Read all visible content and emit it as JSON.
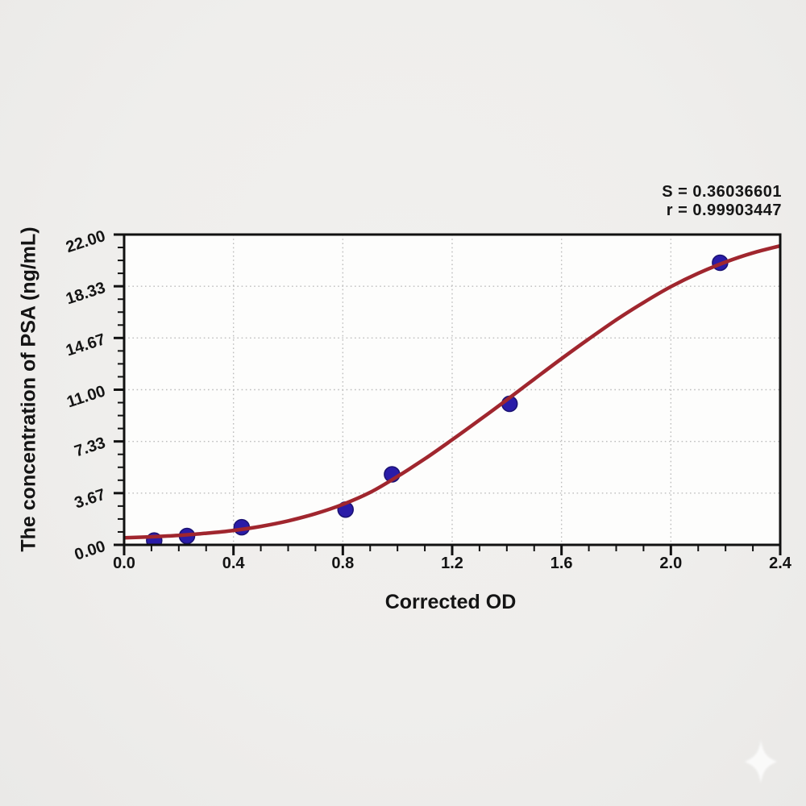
{
  "chart_data": {
    "type": "scatter",
    "title": "",
    "xlabel": "Corrected OD",
    "ylabel": "The concentration of PSA (ng/mL)",
    "xlim": [
      0.0,
      2.4
    ],
    "ylim": [
      0.0,
      22.0
    ],
    "x_major_ticks": [
      0.0,
      0.4,
      0.8,
      1.2,
      1.6,
      2.0,
      2.4
    ],
    "x_tick_labels": [
      "0.0",
      "0.4",
      "0.8",
      "1.2",
      "1.6",
      "2.0",
      "2.4"
    ],
    "x_minor_tick_step": 0.1,
    "y_major_ticks": [
      0.0,
      3.6667,
      7.3333,
      11.0,
      14.6667,
      18.3333,
      22.0
    ],
    "y_tick_labels": [
      "0.00",
      "3.67",
      "7.33",
      "11.00",
      "14.67",
      "18.33",
      "22.00"
    ],
    "y_minor_divisions_per_major": 4,
    "grid": {
      "style": "dotted",
      "on_major": true
    },
    "legend": "none",
    "annotations": {
      "s": "S = 0.36036601",
      "r": "r = 0.99903447"
    },
    "points": {
      "name": "standard-points",
      "x": [
        0.11,
        0.23,
        0.43,
        0.81,
        0.98,
        1.41,
        2.18
      ],
      "y": [
        0.31,
        0.63,
        1.25,
        2.5,
        5.0,
        10.0,
        20.0
      ]
    },
    "fit_curve": {
      "name": "fit-curve",
      "x": [
        0.0,
        0.1,
        0.2,
        0.3,
        0.4,
        0.5,
        0.6,
        0.7,
        0.8,
        0.9,
        1.0,
        1.1,
        1.2,
        1.3,
        1.4,
        1.5,
        1.6,
        1.7,
        1.8,
        1.9,
        2.0,
        2.1,
        2.2,
        2.3,
        2.4
      ],
      "y": [
        0.5,
        0.57,
        0.67,
        0.82,
        1.02,
        1.31,
        1.7,
        2.21,
        2.87,
        3.72,
        4.85,
        6.1,
        7.45,
        8.85,
        10.28,
        11.75,
        13.2,
        14.6,
        15.95,
        17.18,
        18.3,
        19.25,
        20.05,
        20.7,
        21.2
      ]
    },
    "colors": {
      "curve": "#a0262e",
      "marker": "#2a1ca8",
      "marker_edge": "#1a1272",
      "axis": "#111111",
      "grid": "#bdbdbd",
      "text": "#141414",
      "page_bg": "#efeeec",
      "plot_bg": "#fdfdfc",
      "watermark": "#ffffff"
    },
    "watermark_icon": "four-point-sparkle"
  }
}
